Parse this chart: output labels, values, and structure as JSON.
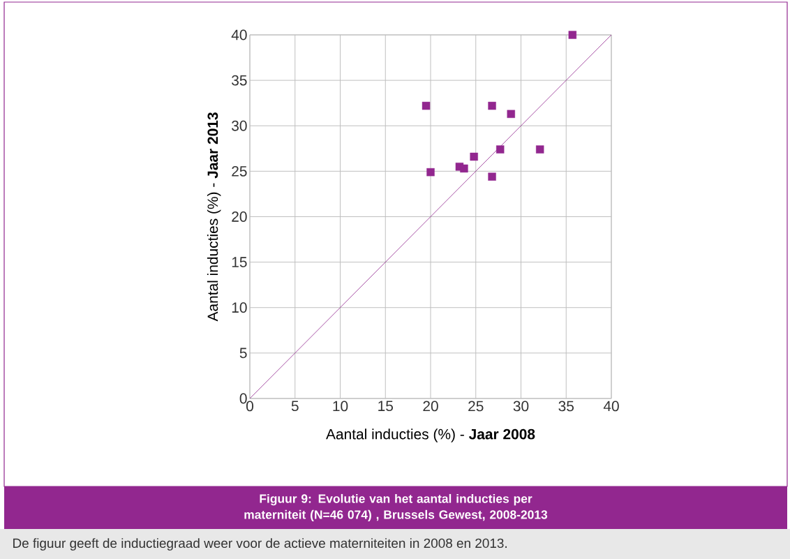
{
  "chart_data": {
    "type": "scatter",
    "title": "Figuur 9: Evolutie van het aantal inducties per materniteit (N=46 074) , Brussels Gewest, 2008-2013",
    "xlabel": "Aantal inducties (%) - **Jaar 2008**",
    "ylabel": "Aantal inducties (%) - **Jaar 2013**",
    "annotations": [
      "De figuur geeft de inductiegraad weer voor de actieve materniteiten in 2008 en 2013."
    ],
    "xlim": [
      0,
      40
    ],
    "ylim": [
      0,
      40
    ],
    "xticks": [
      0,
      5,
      10,
      15,
      20,
      25,
      30,
      35,
      40
    ],
    "yticks": [
      0,
      5,
      10,
      15,
      20,
      25,
      30,
      35,
      40
    ],
    "grid": true,
    "marker": "square",
    "series": [
      {
        "type": "scatter",
        "color": "#92278f",
        "x": [
          19.5,
          20.0,
          23.2,
          23.7,
          24.8,
          26.8,
          26.8,
          27.7,
          28.9,
          32.1,
          35.7
        ],
        "values": [
          32.2,
          24.9,
          25.5,
          25.3,
          26.6,
          32.2,
          24.4,
          27.4,
          31.3,
          27.4,
          40.0
        ]
      },
      {
        "type": "line",
        "color": "#92278f",
        "marker": "none",
        "x": [
          0,
          40
        ],
        "values": [
          0,
          40
        ]
      }
    ]
  }
}
